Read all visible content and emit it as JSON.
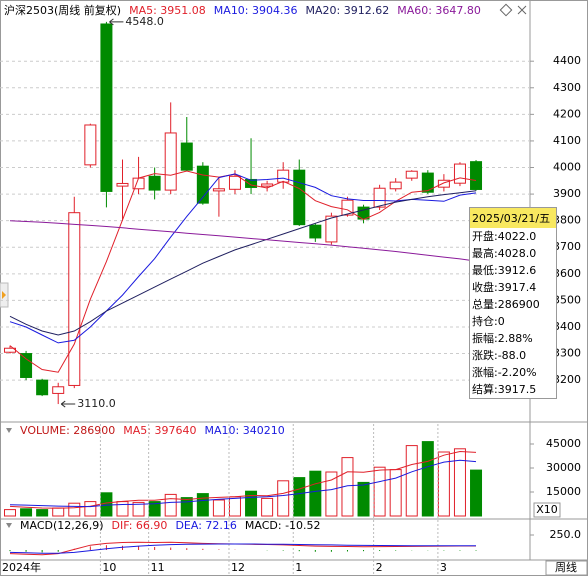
{
  "chart_data": [
    {
      "type": "candlestick",
      "title": "沪深2503(周线 前复权)",
      "up_color": "#e0202a",
      "down_color": "#008a00",
      "open": [
        3305,
        3300,
        3200,
        3150,
        3180,
        4010,
        4540,
        3930,
        3920,
        3967,
        3915,
        4092,
        4005,
        3912,
        3918,
        3955,
        3930,
        3945,
        3990,
        3783,
        3720,
        3821,
        3851,
        3851,
        3920,
        3960,
        3979,
        3926,
        3941,
        4022
      ],
      "high": [
        3330,
        3310,
        3205,
        3190,
        3890,
        4165,
        4548,
        4030,
        4040,
        4000,
        4245,
        4190,
        4020,
        3960,
        3990,
        4110,
        3950,
        4020,
        4030,
        3790,
        3830,
        3890,
        3860,
        3935,
        3960,
        3990,
        3990,
        3975,
        4020,
        4028
      ],
      "low": [
        3300,
        3200,
        3140,
        3110,
        3170,
        4000,
        3850,
        3800,
        3900,
        3880,
        3900,
        3985,
        3860,
        3815,
        3900,
        3900,
        3910,
        3920,
        3780,
        3720,
        3710,
        3815,
        3790,
        3840,
        3910,
        3950,
        3900,
        3910,
        3930,
        3912.6
      ],
      "close": [
        3320,
        3210,
        3145,
        3175,
        3830,
        4160,
        3910,
        3940,
        3960,
        3915,
        4130,
        3990,
        3866,
        3920,
        3967,
        3925,
        3938,
        3990,
        3785,
        3735,
        3817,
        3877,
        3806,
        3922,
        3945,
        3986,
        3907,
        3952,
        4013,
        3917.4
      ],
      "lines": [
        {
          "name": "MA5: 3951.08",
          "color": "#e0202a",
          "values": [
            3330,
            3280,
            3240,
            3230,
            3336,
            3504,
            3646,
            3803,
            3960,
            3977,
            3971,
            3987,
            3972,
            3964,
            3975,
            3934,
            3923,
            3948,
            3921,
            3875,
            3853,
            3841,
            3804,
            3831,
            3873,
            3907,
            3913,
            3942,
            3961,
            3951.08
          ]
        },
        {
          "name": "MA10: 3904.36",
          "color": "#1a1adf",
          "values": [
            3420,
            3400,
            3370,
            3340,
            3350,
            3400,
            3460,
            3520,
            3590,
            3657,
            3738,
            3816,
            3888,
            3962,
            3976,
            3952,
            3955,
            3960,
            3943,
            3925,
            3894,
            3882,
            3876,
            3876,
            3874,
            3880,
            3877,
            3873,
            3896,
            3904.36
          ]
        },
        {
          "name": "MA20: 3912.62",
          "color": "#202060",
          "values": [
            3440,
            3410,
            3385,
            3370,
            3385,
            3420,
            3460,
            3490,
            3520,
            3550,
            3580,
            3610,
            3640,
            3665,
            3690,
            3710,
            3730,
            3750,
            3770,
            3790,
            3810,
            3825,
            3840,
            3855,
            3870,
            3880,
            3890,
            3898,
            3905,
            3912.62
          ]
        },
        {
          "name": "MA60: 3647.80",
          "color": "#8a1a9a",
          "values": [
            3800,
            3797,
            3794,
            3790,
            3786,
            3782,
            3778,
            3773,
            3768,
            3763,
            3758,
            3753,
            3748,
            3743,
            3738,
            3733,
            3728,
            3723,
            3718,
            3713,
            3708,
            3702,
            3696,
            3690,
            3684,
            3677,
            3670,
            3663,
            3656,
            3647.8
          ]
        }
      ],
      "annotations": [
        "4548.0",
        "3110.0"
      ],
      "ylim": [
        3050,
        4555
      ],
      "yticks": [
        3200,
        3300,
        3400,
        3500,
        3600,
        3700,
        3800,
        3900,
        4000,
        4100,
        4200,
        4300,
        4400
      ],
      "grid": true
    },
    {
      "type": "volume",
      "title": "VOLUME: 286900",
      "unit_label": "X10",
      "values": [
        4000,
        4500,
        4000,
        5000,
        8000,
        9000,
        14500,
        9000,
        8500,
        9000,
        13500,
        11500,
        14000,
        10000,
        12000,
        15500,
        11000,
        22000,
        24000,
        28000,
        27500,
        36500,
        21000,
        30500,
        29000,
        44000,
        46500,
        40000,
        42000,
        28690
      ],
      "lines": [
        {
          "name": "MA5: 397640",
          "color": "#e0202a",
          "values": [
            6000,
            5500,
            5000,
            4800,
            5100,
            6100,
            8100,
            9100,
            9800,
            9800,
            10900,
            10300,
            11200,
            11600,
            12000,
            12800,
            12600,
            14100,
            16900,
            20100,
            22500,
            27600,
            27400,
            28700,
            29000,
            32200,
            34100,
            38000,
            40300,
            39764
          ]
        },
        {
          "name": "MA10: 340210",
          "color": "#1a1adf",
          "values": [
            7000,
            6800,
            6500,
            6200,
            6000,
            5900,
            6800,
            7200,
            7300,
            7600,
            8500,
            8800,
            9700,
            10500,
            11000,
            11600,
            12000,
            12800,
            14000,
            15400,
            16500,
            18900,
            19400,
            21500,
            23700,
            27600,
            30800,
            33700,
            34800,
            34021
          ]
        }
      ],
      "ylim": [
        0,
        57500
      ],
      "yticks": [
        15000,
        30000,
        45000
      ]
    },
    {
      "type": "macd",
      "title": "MACD(12,26,9)",
      "categories": [
        "2024年",
        null,
        null,
        null,
        null,
        null,
        "10",
        null,
        null,
        "11",
        null,
        null,
        null,
        null,
        "12",
        null,
        null,
        null,
        "1",
        null,
        null,
        null,
        null,
        "2",
        null,
        null,
        null,
        "3",
        null,
        null
      ],
      "histogram": {
        "name": "MACD: -10.52",
        "values": [
          -20,
          -30,
          -40,
          -30,
          20,
          60,
          80,
          70,
          60,
          50,
          40,
          30,
          20,
          10,
          5,
          0,
          -5,
          -10,
          -20,
          -30,
          -30,
          -25,
          -20,
          -15,
          -10,
          -5,
          -5,
          -8,
          -10,
          -10.52
        ]
      },
      "lines": [
        {
          "name": "DIF: 66.90",
          "color": "#e0202a",
          "values": [
            -60,
            -70,
            -80,
            -60,
            10,
            80,
            110,
            125,
            130,
            125,
            128,
            120,
            110,
            105,
            100,
            95,
            92,
            85,
            75,
            65,
            60,
            58,
            55,
            56,
            58,
            60,
            62,
            64,
            66,
            66.9
          ]
        },
        {
          "name": "DEA: 72.16",
          "color": "#1a1adf",
          "values": [
            -40,
            -45,
            -55,
            -55,
            -40,
            -10,
            20,
            45,
            65,
            80,
            90,
            95,
            98,
            100,
            100,
            99,
            97,
            95,
            92,
            88,
            84,
            80,
            77,
            75,
            73,
            72,
            71,
            71,
            72,
            72.16
          ]
        }
      ],
      "ylim": [
        -167,
        500
      ],
      "yticks": [
        {
          "value": 250,
          "label": "250.0"
        }
      ]
    }
  ],
  "period_label": "周线",
  "info_box": {
    "title": "2025/03/21/五",
    "rows": [
      "开盘:4022.0",
      "最高:4028.0",
      "最低:3912.6",
      "收盘:3917.4",
      "总量:286900",
      "持仓:0",
      "振幅:2.88%",
      "涨跌:-88.0",
      "涨幅:-2.20%",
      "结算:3917.5"
    ]
  }
}
